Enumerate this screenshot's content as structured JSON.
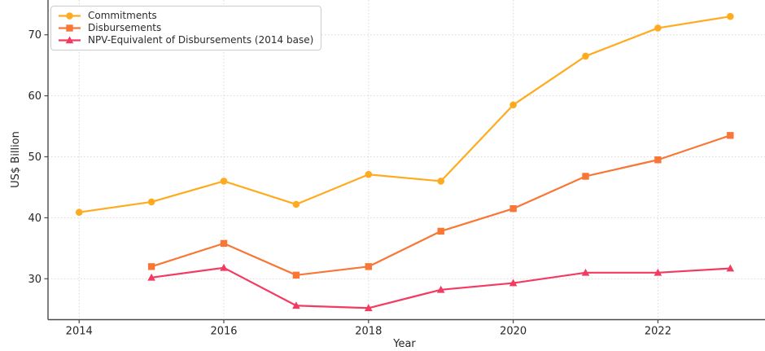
{
  "figure": {
    "background": "#ffffff"
  },
  "chart_data": {
    "type": "line",
    "title": "",
    "xlabel": "Year",
    "ylabel": "US$ Billion",
    "categories": [
      2014,
      2015,
      2016,
      2017,
      2018,
      2019,
      2020,
      2021,
      2022,
      2023
    ],
    "series": [
      {
        "name": "Commitments",
        "color": "#FFAB20",
        "marker": "circle",
        "values": [
          40.9,
          42.6,
          46.0,
          42.2,
          47.1,
          46.0,
          58.5,
          66.5,
          71.1,
          73.0
        ]
      },
      {
        "name": "Disbursements",
        "color": "#F87636",
        "marker": "square",
        "values": [
          null,
          32.0,
          35.8,
          30.6,
          32.0,
          37.8,
          41.5,
          46.8,
          49.5,
          53.5
        ]
      },
      {
        "name": "NPV-Equivalent of Disbursements (2014 base)",
        "color": "#F43A60",
        "marker": "triangle",
        "values": [
          null,
          30.2,
          31.8,
          25.6,
          25.2,
          28.2,
          29.3,
          31.0,
          31.0,
          31.7
        ]
      }
    ],
    "x_ticks": [
      2014,
      2016,
      2018,
      2020,
      2022
    ],
    "x_tick_labels": [
      "2014",
      "2016",
      "2018",
      "2020",
      "2022"
    ],
    "y_ticks": [
      30,
      40,
      50,
      60,
      70
    ],
    "y_tick_labels": [
      "30",
      "40",
      "50",
      "60",
      "70"
    ],
    "xlim": [
      2013.57,
      2023.48
    ],
    "ylim": [
      23.3,
      75.7
    ],
    "grid": true,
    "grid_style": "dotted",
    "legend_position": "upper left",
    "colors": {
      "grid": "#d9d9d9",
      "axis": "#4a4a4a",
      "tick_label": "#262626",
      "axis_label": "#262626"
    }
  }
}
